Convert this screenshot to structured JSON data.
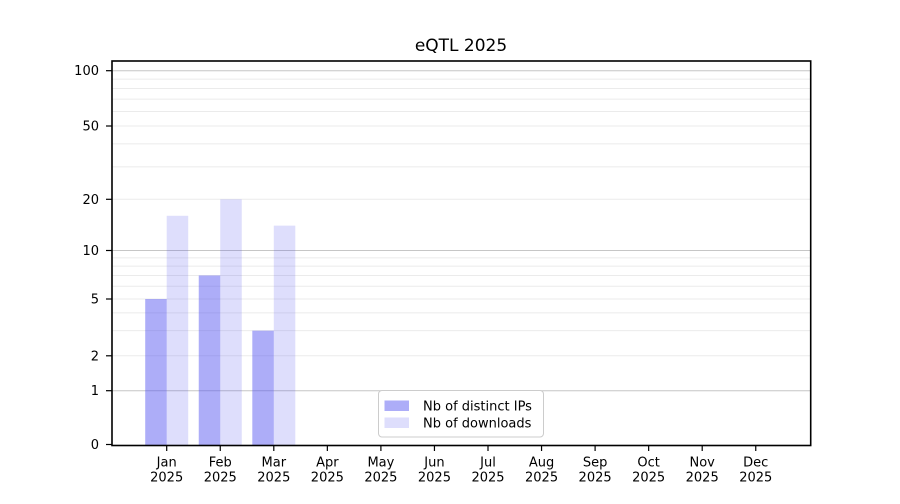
{
  "figure": {
    "background": "#ffffff"
  },
  "chart_data": {
    "type": "bar",
    "title": "eQTL 2025",
    "categories": [
      "Jan",
      "Feb",
      "Mar",
      "Apr",
      "May",
      "Jun",
      "Jul",
      "Aug",
      "Sep",
      "Oct",
      "Nov",
      "Dec"
    ],
    "year_label": "2025",
    "series": [
      {
        "name": "Nb of distinct IPs",
        "base_color": "#5050f0",
        "alpha": 0.47,
        "fill": "rgba(80,80,240,0.47)",
        "solid_hex": "#a8a8f5",
        "values": [
          5,
          7,
          3,
          null,
          null,
          null,
          null,
          null,
          null,
          null,
          null,
          null
        ]
      },
      {
        "name": "Nb of downloads",
        "base_color": "#5050f0",
        "alpha": 0.19,
        "fill": "rgba(80,80,240,0.19)",
        "solid_hex": "#dbdbf8",
        "values": [
          16,
          20,
          14,
          null,
          null,
          null,
          null,
          null,
          null,
          null,
          null,
          null
        ]
      }
    ],
    "y_axis": {
      "scale": "asinh-like (log above 1, linear 0-1)",
      "ticks": [
        0,
        1,
        2,
        5,
        10,
        20,
        50,
        100
      ],
      "major_gridlines": [
        1,
        10,
        100
      ],
      "minor_gridlines": [
        2,
        3,
        4,
        5,
        6,
        7,
        8,
        9,
        20,
        30,
        40,
        50,
        60,
        70,
        80,
        90
      ],
      "ylim": [
        0,
        110
      ]
    },
    "x_axis": {
      "label_line2": "2025"
    },
    "legend": {
      "location": "lower center, inside plot",
      "entries": [
        "Nb of distinct IPs",
        "Nb of downloads"
      ],
      "border_color": "#cccccc",
      "background": "#ffffff"
    },
    "grid": true,
    "colors": {
      "major_grid": "#c6c6c6",
      "minor_grid": "#ebebeb",
      "spine": "#000000"
    }
  }
}
